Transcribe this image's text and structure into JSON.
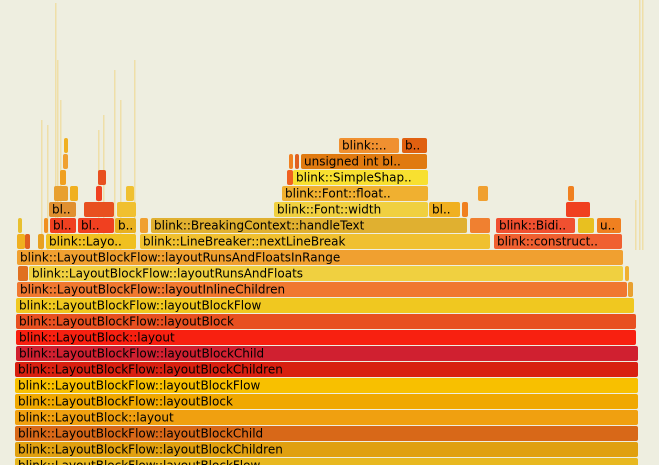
{
  "frames": [
    "blink::LayoutBlockFlow::layoutBlockFlow",
    "blink::LayoutBlockFlow::layoutBlockChildren",
    "blink::LayoutBlockFlow::layoutBlockChild",
    "blink::LayoutBlock::layout",
    "blink::LayoutBlockFlow::layoutBlock",
    "blink::LayoutBlockFlow::layoutBlockFlow",
    "blink::LayoutBlockFlow::layoutBlockChildren",
    "blink::LayoutBlockFlow::layoutBlockChild",
    "blink::LayoutBlock::layout",
    "blink::LayoutBlockFlow::layoutBlock",
    "blink::LayoutBlockFlow::layoutBlockFlow",
    "blink::LayoutBlockFlow::layoutInlineChildren",
    "blink::LayoutBlockFlow::layoutRunsAndFloats",
    "blink::LayoutBlockFlow::layoutRunsAndFloatsInRange",
    "blink::Layo..",
    "blink::LineBreaker::nextLineBreak",
    "blink::construct..",
    "bl..",
    "bl..",
    "b..",
    "blink::BreakingContext::handleText",
    "blink::Bidi..",
    "u..",
    "bl..",
    "blink::Font::width",
    "bl..",
    "blink::Font::float..",
    "blink::SimpleShap..",
    "unsigned int bl..",
    "blink::..",
    "b.."
  ]
}
